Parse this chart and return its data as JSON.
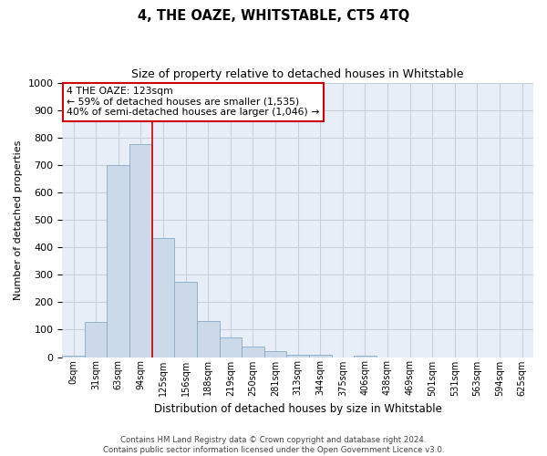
{
  "title": "4, THE OAZE, WHITSTABLE, CT5 4TQ",
  "subtitle": "Size of property relative to detached houses in Whitstable",
  "xlabel": "Distribution of detached houses by size in Whitstable",
  "ylabel": "Number of detached properties",
  "footer_line1": "Contains HM Land Registry data © Crown copyright and database right 2024.",
  "footer_line2": "Contains public sector information licensed under the Open Government Licence v3.0.",
  "annotation_line1": "4 THE OAZE: 123sqm",
  "annotation_line2": "← 59% of detached houses are smaller (1,535)",
  "annotation_line3": "40% of semi-detached houses are larger (1,046) →",
  "bar_color": "#ccd9e8",
  "bar_edge_color": "#8aaac8",
  "vline_color": "#cc0000",
  "annotation_box_edge_color": "#cc0000",
  "grid_color": "#c8d0dc",
  "background_color": "#e8eef8",
  "ylim": [
    0,
    1000
  ],
  "yticks": [
    0,
    100,
    200,
    300,
    400,
    500,
    600,
    700,
    800,
    900,
    1000
  ],
  "categories": [
    "0sqm",
    "31sqm",
    "63sqm",
    "94sqm",
    "125sqm",
    "156sqm",
    "188sqm",
    "219sqm",
    "250sqm",
    "281sqm",
    "313sqm",
    "344sqm",
    "375sqm",
    "406sqm",
    "438sqm",
    "469sqm",
    "501sqm",
    "531sqm",
    "563sqm",
    "594sqm",
    "625sqm"
  ],
  "values": [
    5,
    128,
    700,
    775,
    435,
    275,
    132,
    70,
    37,
    22,
    10,
    10,
    0,
    5,
    0,
    0,
    0,
    0,
    0,
    0,
    0
  ],
  "vline_index": 3.5,
  "figsize": [
    6.0,
    5.0
  ],
  "dpi": 100
}
